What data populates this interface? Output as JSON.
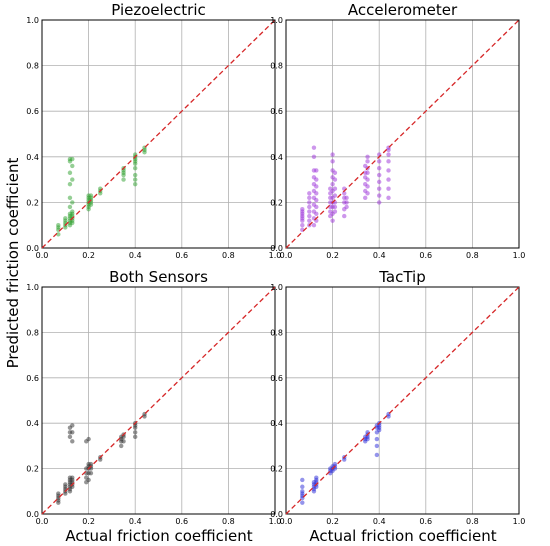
{
  "figure": {
    "ylabel": "Predicted friction coefficient",
    "xlabel": "Actual friction coefficient"
  },
  "chart_data": [
    {
      "type": "scatter",
      "title": "Piezoelectric",
      "color": "#2ca02c",
      "xlim": [
        0,
        1
      ],
      "ylim": [
        0,
        1
      ],
      "ticks": [
        "0.0",
        "0.2",
        "0.4",
        "0.6",
        "0.8",
        "1.0"
      ],
      "grid": true,
      "reference_line": {
        "style": "dashed",
        "color": "#d62728",
        "from": [
          0,
          0
        ],
        "to": [
          1,
          1
        ]
      },
      "groups": [
        {
          "x": 0.07,
          "y": [
            0.06,
            0.08,
            0.09,
            0.1
          ]
        },
        {
          "x": 0.1,
          "y": [
            0.09,
            0.1,
            0.11,
            0.12,
            0.13
          ]
        },
        {
          "x": 0.12,
          "y": [
            0.1,
            0.11,
            0.12,
            0.13,
            0.14,
            0.15,
            0.18,
            0.22,
            0.28,
            0.33,
            0.38,
            0.39
          ]
        },
        {
          "x": 0.13,
          "y": [
            0.11,
            0.12,
            0.13,
            0.14,
            0.15,
            0.16,
            0.2,
            0.3,
            0.36,
            0.39
          ]
        },
        {
          "x": 0.2,
          "y": [
            0.17,
            0.18,
            0.19,
            0.2,
            0.21,
            0.22,
            0.23
          ]
        },
        {
          "x": 0.21,
          "y": [
            0.19,
            0.2,
            0.21,
            0.22,
            0.23
          ]
        },
        {
          "x": 0.25,
          "y": [
            0.24,
            0.25,
            0.26
          ]
        },
        {
          "x": 0.35,
          "y": [
            0.3,
            0.32,
            0.33,
            0.34,
            0.35
          ]
        },
        {
          "x": 0.4,
          "y": [
            0.28,
            0.3,
            0.32,
            0.35,
            0.37,
            0.38,
            0.39,
            0.4,
            0.41
          ]
        },
        {
          "x": 0.44,
          "y": [
            0.42,
            0.43,
            0.44
          ]
        }
      ]
    },
    {
      "type": "scatter",
      "title": "Accelerometer",
      "color": "#9b30d9",
      "xlim": [
        0,
        1
      ],
      "ylim": [
        0,
        1
      ],
      "ticks": [
        "0.0",
        "0.2",
        "0.4",
        "0.6",
        "0.8",
        "1.0"
      ],
      "grid": true,
      "reference_line": {
        "style": "dashed",
        "color": "#d62728",
        "from": [
          0,
          0
        ],
        "to": [
          1,
          1
        ]
      },
      "groups": [
        {
          "x": 0.07,
          "y": [
            0.08,
            0.1,
            0.12,
            0.13,
            0.14,
            0.15,
            0.16,
            0.17
          ]
        },
        {
          "x": 0.1,
          "y": [
            0.1,
            0.12,
            0.14,
            0.16,
            0.18,
            0.2,
            0.22,
            0.24
          ]
        },
        {
          "x": 0.12,
          "y": [
            0.1,
            0.13,
            0.16,
            0.19,
            0.22,
            0.25,
            0.28,
            0.31,
            0.34,
            0.4,
            0.44
          ]
        },
        {
          "x": 0.13,
          "y": [
            0.12,
            0.15,
            0.18,
            0.21,
            0.24,
            0.27,
            0.3,
            0.34
          ]
        },
        {
          "x": 0.19,
          "y": [
            0.14,
            0.16,
            0.18,
            0.2,
            0.22,
            0.24,
            0.26
          ]
        },
        {
          "x": 0.2,
          "y": [
            0.12,
            0.15,
            0.18,
            0.2,
            0.22,
            0.25,
            0.28,
            0.31,
            0.34,
            0.38,
            0.41
          ]
        },
        {
          "x": 0.21,
          "y": [
            0.16,
            0.18,
            0.2,
            0.23,
            0.26,
            0.3,
            0.33
          ]
        },
        {
          "x": 0.25,
          "y": [
            0.14,
            0.17,
            0.2,
            0.22,
            0.24,
            0.26
          ]
        },
        {
          "x": 0.26,
          "y": [
            0.18,
            0.2,
            0.22
          ]
        },
        {
          "x": 0.34,
          "y": [
            0.22,
            0.25,
            0.28,
            0.31,
            0.33,
            0.36
          ]
        },
        {
          "x": 0.35,
          "y": [
            0.24,
            0.27,
            0.3,
            0.33,
            0.35,
            0.38,
            0.4
          ]
        },
        {
          "x": 0.4,
          "y": [
            0.2,
            0.23,
            0.26,
            0.29,
            0.32,
            0.35,
            0.38,
            0.41
          ]
        },
        {
          "x": 0.44,
          "y": [
            0.22,
            0.26,
            0.3,
            0.34,
            0.38,
            0.41,
            0.43,
            0.44
          ]
        }
      ]
    },
    {
      "type": "scatter",
      "title": "Both Sensors",
      "color": "#2b2b2b",
      "xlim": [
        0,
        1
      ],
      "ylim": [
        0,
        1
      ],
      "ticks": [
        "0.0",
        "0.2",
        "0.4",
        "0.6",
        "0.8",
        "1.0"
      ],
      "grid": true,
      "reference_line": {
        "style": "dashed",
        "color": "#d62728",
        "from": [
          0,
          0
        ],
        "to": [
          1,
          1
        ]
      },
      "groups": [
        {
          "x": 0.07,
          "y": [
            0.05,
            0.06,
            0.07,
            0.08,
            0.09
          ]
        },
        {
          "x": 0.1,
          "y": [
            0.09,
            0.1,
            0.11,
            0.12,
            0.13
          ]
        },
        {
          "x": 0.12,
          "y": [
            0.1,
            0.11,
            0.12,
            0.13,
            0.14,
            0.15,
            0.16,
            0.34,
            0.36,
            0.38
          ]
        },
        {
          "x": 0.13,
          "y": [
            0.12,
            0.13,
            0.14,
            0.15,
            0.16,
            0.32,
            0.36,
            0.39
          ]
        },
        {
          "x": 0.19,
          "y": [
            0.14,
            0.16,
            0.18,
            0.2,
            0.32
          ]
        },
        {
          "x": 0.2,
          "y": [
            0.15,
            0.18,
            0.2,
            0.21,
            0.22,
            0.33
          ]
        },
        {
          "x": 0.21,
          "y": [
            0.18,
            0.2,
            0.21,
            0.22
          ]
        },
        {
          "x": 0.25,
          "y": [
            0.24,
            0.25
          ]
        },
        {
          "x": 0.34,
          "y": [
            0.3,
            0.32,
            0.33,
            0.34
          ]
        },
        {
          "x": 0.35,
          "y": [
            0.32,
            0.34,
            0.35
          ]
        },
        {
          "x": 0.4,
          "y": [
            0.34,
            0.36,
            0.38,
            0.39,
            0.4
          ]
        },
        {
          "x": 0.44,
          "y": [
            0.43,
            0.44
          ]
        }
      ]
    },
    {
      "type": "scatter",
      "title": "TacTip",
      "color": "#2a2ad8",
      "xlim": [
        0,
        1
      ],
      "ylim": [
        0,
        1
      ],
      "ticks": [
        "0.0",
        "0.2",
        "0.4",
        "0.6",
        "0.8",
        "1.0"
      ],
      "grid": true,
      "reference_line": {
        "style": "dashed",
        "color": "#d62728",
        "from": [
          0,
          0
        ],
        "to": [
          1,
          1
        ]
      },
      "groups": [
        {
          "x": 0.07,
          "y": [
            0.05,
            0.07,
            0.08,
            0.09,
            0.1,
            0.12,
            0.15
          ]
        },
        {
          "x": 0.12,
          "y": [
            0.1,
            0.11,
            0.12,
            0.13,
            0.14
          ]
        },
        {
          "x": 0.13,
          "y": [
            0.12,
            0.13,
            0.14,
            0.15,
            0.16
          ]
        },
        {
          "x": 0.19,
          "y": [
            0.18,
            0.19,
            0.2
          ]
        },
        {
          "x": 0.2,
          "y": [
            0.19,
            0.2,
            0.21
          ]
        },
        {
          "x": 0.21,
          "y": [
            0.2,
            0.21,
            0.22
          ]
        },
        {
          "x": 0.25,
          "y": [
            0.24,
            0.25
          ]
        },
        {
          "x": 0.34,
          "y": [
            0.32,
            0.33,
            0.34
          ]
        },
        {
          "x": 0.35,
          "y": [
            0.33,
            0.34,
            0.35,
            0.36
          ]
        },
        {
          "x": 0.39,
          "y": [
            0.26,
            0.3,
            0.33,
            0.36,
            0.38,
            0.39
          ]
        },
        {
          "x": 0.4,
          "y": [
            0.37,
            0.38,
            0.39,
            0.4
          ]
        },
        {
          "x": 0.44,
          "y": [
            0.43,
            0.44
          ]
        }
      ]
    }
  ]
}
